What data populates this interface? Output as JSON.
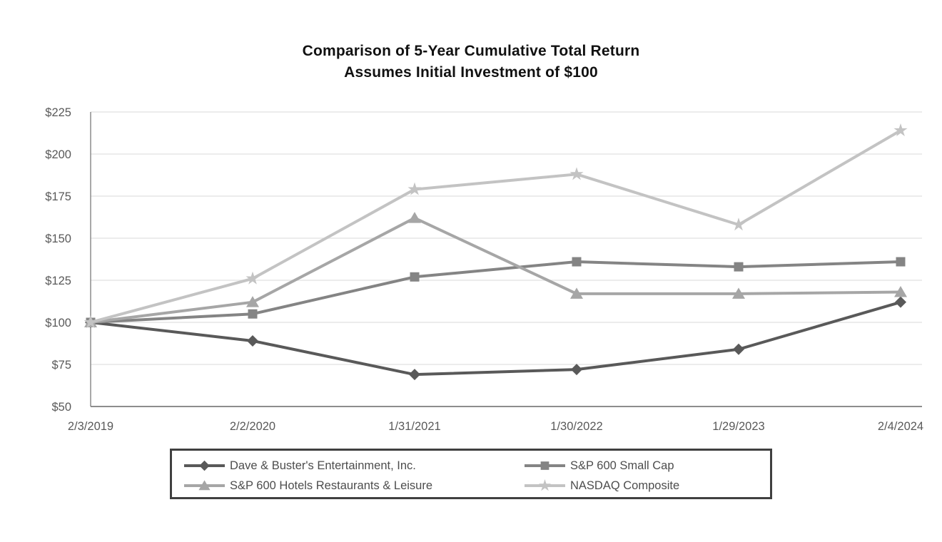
{
  "title": {
    "line1": "Comparison of 5-Year Cumulative Total Return",
    "line2": "Assumes Initial Investment of $100"
  },
  "chart_data": {
    "type": "line",
    "title": "Comparison of 5-Year Cumulative Total Return",
    "subtitle": "Assumes Initial Investment of $100",
    "x_labels": [
      "2/3/2019",
      "2/2/2020",
      "1/31/2021",
      "1/30/2022",
      "1/29/2023",
      "2/4/2024"
    ],
    "y_tick_values": [
      225,
      200,
      175,
      150,
      125,
      100,
      75,
      50
    ],
    "y_tick_labels": [
      "$225",
      "$200",
      "$175",
      "$150",
      "$125",
      "$100",
      "$75",
      "$50"
    ],
    "ylim": [
      50,
      225
    ],
    "grid": true,
    "legend_position": "bottom-center",
    "series": [
      {
        "name": "Dave & Buster's Entertainment, Inc.",
        "marker": "diamond",
        "color": "#595959",
        "values": [
          100,
          89,
          69,
          72,
          84,
          112
        ]
      },
      {
        "name": "S&P 600 Small Cap",
        "marker": "square",
        "color": "#848484",
        "values": [
          100,
          105,
          127,
          136,
          133,
          136
        ]
      },
      {
        "name": "S&P 600 Hotels Restaurants & Leisure",
        "marker": "triangle",
        "color": "#a6a6a6",
        "values": [
          100,
          112,
          162,
          117,
          117,
          118
        ]
      },
      {
        "name": "NASDAQ Composite",
        "marker": "star",
        "color": "#c3c3c3",
        "values": [
          100,
          126,
          179,
          188,
          158,
          214
        ]
      }
    ],
    "colors": {
      "gridline": "#e6e6e6",
      "axis_line": "#8c8c8c",
      "axis_label": "#595959",
      "legend_border": "#404040",
      "title_text": "#111111"
    }
  }
}
